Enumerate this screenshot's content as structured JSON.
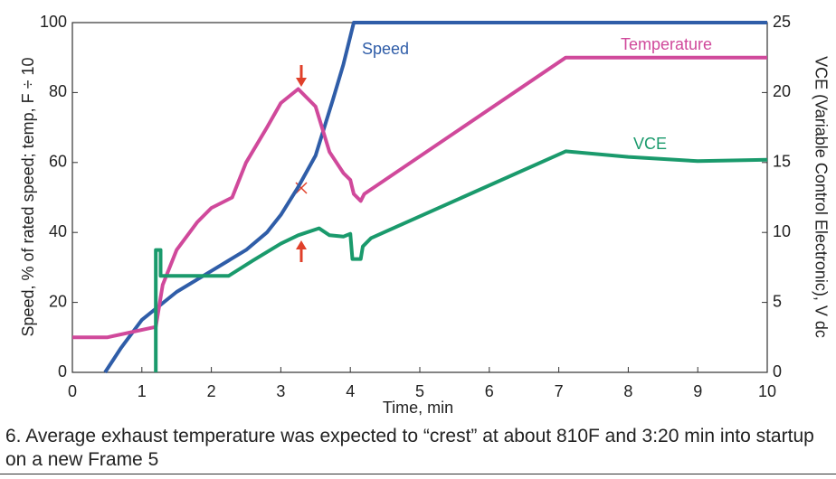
{
  "chart_data": {
    "type": "line",
    "xlabel": "Time, min",
    "ylabel": "Speed, % of rated speed; temp, F ÷ 10",
    "y2label": "VCE (Variable Control Electronic), V dc",
    "xlim": [
      0,
      10
    ],
    "xticks": [
      0,
      1,
      2,
      3,
      4,
      5,
      6,
      7,
      8,
      9,
      10
    ],
    "ylim": [
      0,
      100
    ],
    "yticks": [
      0,
      20,
      40,
      60,
      80,
      100
    ],
    "y2lim": [
      0,
      25
    ],
    "y2ticks": [
      0,
      5,
      10,
      15,
      20,
      25
    ],
    "grid": false,
    "series": [
      {
        "name": "Speed",
        "color": "#2f5da8",
        "x": [
          0.47,
          0.7,
          1,
          1.5,
          2,
          2.5,
          2.8,
          3,
          3.25,
          3.5,
          3.75,
          3.9,
          4.05,
          10
        ],
        "values": [
          0,
          7,
          15,
          23,
          29,
          35,
          40,
          45,
          53,
          62,
          78,
          88,
          100,
          100
        ]
      },
      {
        "name": "Temperature",
        "color": "#d0499b",
        "x": [
          0,
          0.5,
          1.2,
          1.3,
          1.5,
          1.8,
          2.0,
          2.3,
          2.5,
          2.8,
          3.0,
          3.25,
          3.5,
          3.7,
          3.9,
          4.0,
          4.05,
          4.15,
          4.2,
          7.1,
          10
        ],
        "values": [
          10,
          10,
          13,
          25,
          35,
          43,
          47,
          50,
          60,
          70,
          77,
          81,
          76,
          63,
          57,
          55,
          51,
          49,
          51,
          90,
          90
        ]
      },
      {
        "name": "VCE",
        "color": "#1a9a6c",
        "axis": "y2",
        "x": [
          1.2,
          1.2,
          1.27,
          1.27,
          2.25,
          2.6,
          3,
          3.25,
          3.55,
          3.7,
          3.9,
          4.0,
          4.03,
          4.15,
          4.18,
          4.3,
          7.1,
          8,
          9,
          10
        ],
        "values": [
          0,
          8.75,
          8.75,
          6.9,
          6.9,
          8,
          9.2,
          9.8,
          10.3,
          9.8,
          9.7,
          9.9,
          8.1,
          8.1,
          9,
          9.6,
          15.8,
          15.4,
          15.1,
          15.2
        ]
      }
    ],
    "caption": "6. Average exhaust temperature was expected to “crest” at about 810F and 3:20 min into startup on a new Frame 5"
  }
}
